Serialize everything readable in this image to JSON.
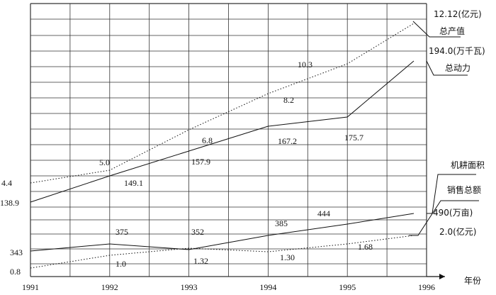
{
  "chart_data": {
    "type": "line",
    "title": "",
    "xlabel": "年份",
    "ylabel": "",
    "x_ticks": [
      "1991",
      "1992",
      "1993",
      "1994",
      "1995",
      "1996"
    ],
    "grid": true,
    "series": [
      {
        "name": "总产值",
        "unit_label": "12.12(亿元)",
        "style": "dotted",
        "points": [
          {
            "x": 1991,
            "y": 4.4,
            "label": "4.4"
          },
          {
            "x": 1992,
            "y": 5.0,
            "label": "5.0"
          },
          {
            "x": 1993,
            "y": 6.8,
            "label": "6.8"
          },
          {
            "x": 1994,
            "y": 8.2,
            "label": "8.2"
          },
          {
            "x": 1995,
            "y": 10.3,
            "label": "10.3"
          },
          {
            "x": 1996,
            "y": 12.12,
            "label": ""
          }
        ]
      },
      {
        "name": "总动力",
        "unit_label": "194.0(万千瓦)",
        "style": "solid",
        "points": [
          {
            "x": 1991,
            "y": 138.9,
            "label": "138.9"
          },
          {
            "x": 1992,
            "y": 149.1,
            "label": "149.1"
          },
          {
            "x": 1993,
            "y": 157.9,
            "label": "157.9"
          },
          {
            "x": 1994,
            "y": 167.2,
            "label": "167.2"
          },
          {
            "x": 1995,
            "y": 175.7,
            "label": "175.7"
          },
          {
            "x": 1996,
            "y": 194.0,
            "label": ""
          }
        ]
      },
      {
        "name": "机耕面积",
        "unit_label": "490(万亩)",
        "style": "solid",
        "points": [
          {
            "x": 1991,
            "y": 343,
            "label": "343"
          },
          {
            "x": 1992,
            "y": 375,
            "label": "375"
          },
          {
            "x": 1993,
            "y": 352,
            "label": "352"
          },
          {
            "x": 1994,
            "y": 385,
            "label": "385"
          },
          {
            "x": 1995,
            "y": 444,
            "label": "444"
          },
          {
            "x": 1996,
            "y": 490,
            "label": ""
          }
        ]
      },
      {
        "name": "销售总额",
        "unit_label": "2.0(亿元)",
        "style": "dotted",
        "points": [
          {
            "x": 1991,
            "y": 0.8,
            "label": "0.8"
          },
          {
            "x": 1992,
            "y": 1.0,
            "label": "1.0"
          },
          {
            "x": 1993,
            "y": 1.32,
            "label": "1.32"
          },
          {
            "x": 1994,
            "y": 1.3,
            "label": "1.30"
          },
          {
            "x": 1995,
            "y": 1.68,
            "label": "1.68"
          },
          {
            "x": 1996,
            "y": 2.0,
            "label": ""
          }
        ]
      }
    ]
  }
}
